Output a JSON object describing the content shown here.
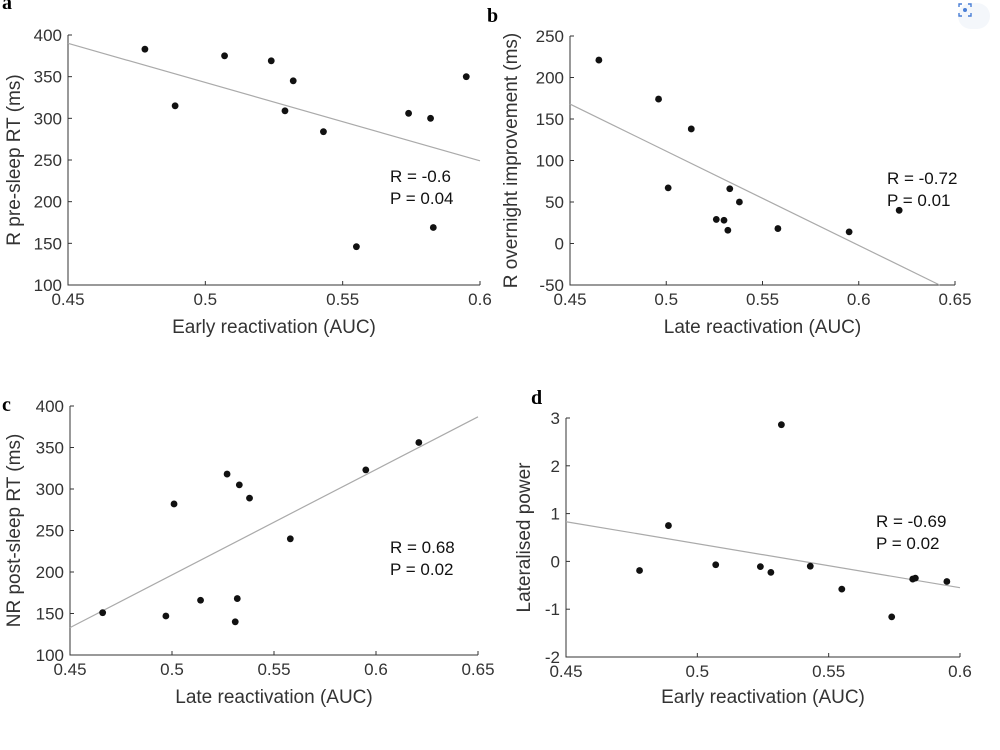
{
  "chart_data": [
    {
      "panel": "a",
      "type": "scatter",
      "xlabel": "Early reactivation (AUC)",
      "ylabel": "R pre-sleep RT (ms)",
      "xlim": [
        0.45,
        0.6
      ],
      "ylim": [
        100,
        400
      ],
      "xticks": [
        "0.45",
        "0.5",
        "0.55",
        "0.6"
      ],
      "yticks": [
        "100",
        "150",
        "200",
        "250",
        "300",
        "350",
        "400"
      ],
      "stats": [
        "R = -0.6",
        "P = 0.04"
      ],
      "fit": [
        [
          0.45,
          390
        ],
        [
          0.6,
          249
        ]
      ],
      "points": [
        [
          0.478,
          383
        ],
        [
          0.489,
          315
        ],
        [
          0.507,
          375
        ],
        [
          0.524,
          369
        ],
        [
          0.529,
          309
        ],
        [
          0.532,
          345
        ],
        [
          0.543,
          284
        ],
        [
          0.555,
          146
        ],
        [
          0.574,
          306
        ],
        [
          0.582,
          300
        ],
        [
          0.583,
          169
        ],
        [
          0.595,
          350
        ]
      ]
    },
    {
      "panel": "b",
      "type": "scatter",
      "xlabel": "Late reactivation (AUC)",
      "ylabel": "R overnight improvement (ms)",
      "xlim": [
        0.45,
        0.65
      ],
      "ylim": [
        -50,
        250
      ],
      "xticks": [
        "0.45",
        "0.5",
        "0.55",
        "0.6",
        "0.65"
      ],
      "yticks": [
        "-50",
        "0",
        "50",
        "100",
        "150",
        "200",
        "250"
      ],
      "stats": [
        "R = -0.72",
        "P = 0.01"
      ],
      "fit": [
        [
          0.45,
          168
        ],
        [
          0.642,
          -50
        ]
      ],
      "points": [
        [
          0.465,
          221
        ],
        [
          0.496,
          174
        ],
        [
          0.501,
          67
        ],
        [
          0.513,
          138
        ],
        [
          0.526,
          29
        ],
        [
          0.53,
          28
        ],
        [
          0.532,
          16
        ],
        [
          0.533,
          66
        ],
        [
          0.538,
          50
        ],
        [
          0.558,
          18
        ],
        [
          0.595,
          14
        ],
        [
          0.621,
          40
        ]
      ]
    },
    {
      "panel": "c",
      "type": "scatter",
      "xlabel": "Late reactivation (AUC)",
      "ylabel": "NR post-sleep RT (ms)",
      "xlim": [
        0.45,
        0.65
      ],
      "ylim": [
        100,
        400
      ],
      "xticks": [
        "0.45",
        "0.5",
        "0.55",
        "0.6",
        "0.65"
      ],
      "yticks": [
        "100",
        "150",
        "200",
        "250",
        "300",
        "350",
        "400"
      ],
      "stats": [
        "R = 0.68",
        "P = 0.02"
      ],
      "fit": [
        [
          0.45,
          133
        ],
        [
          0.65,
          387
        ]
      ],
      "points": [
        [
          0.466,
          151
        ],
        [
          0.497,
          147
        ],
        [
          0.501,
          282
        ],
        [
          0.514,
          166
        ],
        [
          0.527,
          318
        ],
        [
          0.531,
          140
        ],
        [
          0.532,
          168
        ],
        [
          0.533,
          305
        ],
        [
          0.538,
          289
        ],
        [
          0.558,
          240
        ],
        [
          0.595,
          323
        ],
        [
          0.621,
          356
        ]
      ]
    },
    {
      "panel": "d",
      "type": "scatter",
      "xlabel": "Early reactivation (AUC)",
      "ylabel": "Lateralised power",
      "xlim": [
        0.45,
        0.6
      ],
      "ylim": [
        -2,
        3
      ],
      "xticks": [
        "0.45",
        "0.5",
        "0.55",
        "0.6"
      ],
      "yticks": [
        "-2",
        "-1",
        "0",
        "1",
        "2",
        "3"
      ],
      "stats": [
        "R = -0.69",
        "P = 0.02"
      ],
      "fit": [
        [
          0.45,
          0.83
        ],
        [
          0.6,
          -0.55
        ]
      ],
      "points": [
        [
          0.478,
          -0.19
        ],
        [
          0.489,
          0.75
        ],
        [
          0.507,
          -0.07
        ],
        [
          0.524,
          -0.11
        ],
        [
          0.528,
          -0.23
        ],
        [
          0.532,
          2.86
        ],
        [
          0.543,
          -0.1
        ],
        [
          0.555,
          -0.58
        ],
        [
          0.574,
          -1.16
        ],
        [
          0.582,
          -0.37
        ],
        [
          0.583,
          -0.35
        ],
        [
          0.595,
          -0.42
        ]
      ]
    }
  ]
}
